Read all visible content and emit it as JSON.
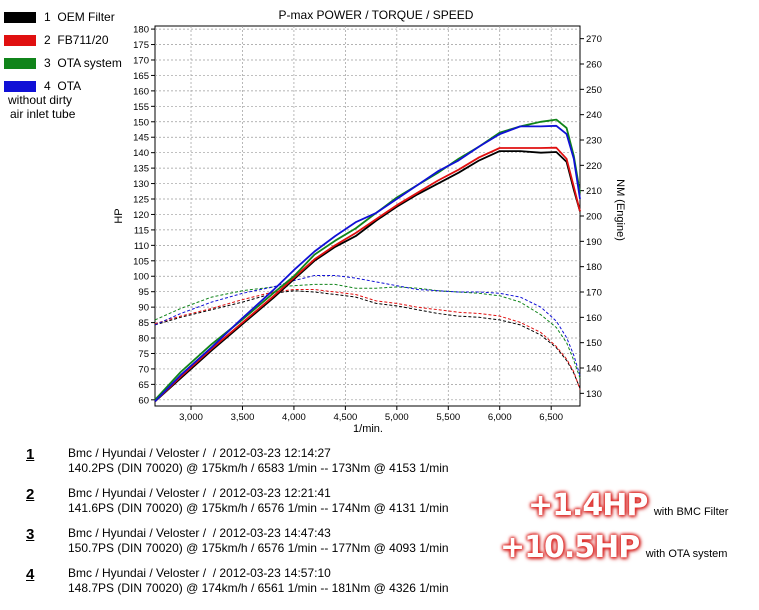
{
  "legend": [
    {
      "num": "1",
      "label": "OEM Filter",
      "color": "#000000"
    },
    {
      "num": "2",
      "label": "FB711/20",
      "color": "#e01010"
    },
    {
      "num": "3",
      "label": "OTA system",
      "color": "#10841a"
    },
    {
      "num": "4",
      "label": "OTA",
      "label2": "without dirty",
      "label3": "air inlet tube",
      "color": "#1010d6"
    }
  ],
  "runs": [
    {
      "num": "1",
      "line1": "Bmc / Hyundai / Veloster /  / 2012-03-23 12:14:27",
      "line2": "140.2PS (DIN 70020) @ 175km/h / 6583 1/min -- 173Nm @ 4153 1/min"
    },
    {
      "num": "2",
      "line1": "Bmc / Hyundai / Veloster /  / 2012-03-23 12:21:41",
      "line2": "141.6PS (DIN 70020) @ 175km/h / 6576 1/min -- 174Nm @ 4131 1/min"
    },
    {
      "num": "3",
      "line1": "Bmc / Hyundai / Veloster /  / 2012-03-23 14:47:43",
      "line2": "150.7PS (DIN 70020) @ 175km/h / 6576 1/min -- 177Nm @ 4093 1/min"
    },
    {
      "num": "4",
      "line1": "Bmc / Hyundai / Veloster /  / 2012-03-23 14:57:10",
      "line2": "148.7PS (DIN 70020) @ 174km/h / 6561 1/min -- 181Nm @ 4326 1/min"
    }
  ],
  "gains": [
    {
      "value": "+1.4HP",
      "label": "with BMC Filter"
    },
    {
      "value": "+10.5HP",
      "label": "with OTA system"
    }
  ],
  "chart_data": {
    "type": "line",
    "title": "P-max POWER / TORQUE / SPEED",
    "xlabel": "1/min.",
    "ylabel": "HP",
    "y2label": "NM (Engine)",
    "xlim": [
      2650,
      6780
    ],
    "ylim": [
      58,
      181
    ],
    "y2lim": [
      125,
      275
    ],
    "xticks": [
      3000,
      3500,
      4000,
      4500,
      5000,
      5500,
      6000,
      6500
    ],
    "xtick_labels": [
      "3,000",
      "3,500",
      "4,000",
      "4,500",
      "5,000",
      "5,500",
      "6,000",
      "6,500"
    ],
    "yticks": [
      60,
      65,
      70,
      75,
      80,
      85,
      90,
      95,
      100,
      105,
      110,
      115,
      120,
      125,
      130,
      135,
      140,
      145,
      150,
      155,
      160,
      165,
      170,
      175,
      180
    ],
    "y2ticks": [
      130,
      140,
      150,
      160,
      170,
      180,
      190,
      200,
      210,
      220,
      230,
      240,
      250,
      260,
      270
    ],
    "grid": true,
    "power_rpm": [
      2650,
      2900,
      3200,
      3500,
      3800,
      4000,
      4200,
      4400,
      4600,
      4800,
      5000,
      5200,
      5400,
      5600,
      5800,
      6000,
      6200,
      6400,
      6550,
      6650,
      6720,
      6780
    ],
    "torque_rpm": [
      2650,
      2900,
      3200,
      3500,
      3800,
      4000,
      4200,
      4400,
      4600,
      4800,
      5000,
      5200,
      5400,
      5600,
      5800,
      6000,
      6200,
      6400,
      6550,
      6650,
      6720,
      6780
    ],
    "series": [
      {
        "name": "OEM Filter",
        "color": "#000000",
        "power": [
          59.5,
          67,
          76,
          84.5,
          93,
          99,
          105,
          109.5,
          113,
          118,
          122.5,
          126.5,
          130,
          133.5,
          137.5,
          140.5,
          140.5,
          140,
          140.2,
          137,
          128,
          121
        ],
        "torque": [
          157,
          160,
          163,
          166,
          169.5,
          170.5,
          170,
          169,
          168,
          165.5,
          164.5,
          163,
          161.5,
          160.5,
          160,
          159,
          157,
          153,
          148,
          143,
          138,
          132
        ]
      },
      {
        "name": "FB711/20",
        "color": "#e01010",
        "power": [
          59.5,
          67.5,
          76.5,
          85,
          93.5,
          99.5,
          105.5,
          110,
          114,
          118.5,
          123,
          127,
          131,
          134.5,
          138.5,
          141.5,
          141.5,
          141.5,
          141.6,
          138,
          129,
          121
        ],
        "torque": [
          157.5,
          160.5,
          163.5,
          167,
          170,
          171,
          171,
          170,
          169,
          166.5,
          165.5,
          164,
          163,
          162,
          161.5,
          160.5,
          158,
          154,
          148.5,
          143.5,
          138.5,
          131.5
        ]
      },
      {
        "name": "OTA system",
        "color": "#10841a",
        "power": [
          60,
          69,
          78,
          86,
          94.5,
          100,
          107,
          111.5,
          115.5,
          120.5,
          125.5,
          129.5,
          133.5,
          138,
          142,
          146.5,
          148.5,
          150,
          150.7,
          148,
          139,
          127
        ],
        "torque": [
          159,
          163.5,
          168,
          170.5,
          172,
          172.5,
          173,
          173,
          171.5,
          171.5,
          172,
          171.5,
          170.5,
          170,
          169.5,
          168.5,
          166,
          161,
          156,
          150,
          143,
          136
        ]
      },
      {
        "name": "OTA",
        "color": "#1010d6",
        "power": [
          59.5,
          68,
          77,
          86.5,
          95.5,
          102,
          108,
          113,
          117.5,
          120.5,
          125,
          129.5,
          134,
          137.5,
          142,
          146,
          148.5,
          148.5,
          148.7,
          146,
          138,
          125
        ],
        "torque": [
          157,
          161.5,
          166,
          169.5,
          172,
          174.5,
          176.5,
          176.5,
          175.5,
          174,
          172.5,
          171,
          170.5,
          170,
          170,
          169.5,
          168,
          164,
          158.5,
          152,
          145,
          137
        ]
      }
    ]
  }
}
